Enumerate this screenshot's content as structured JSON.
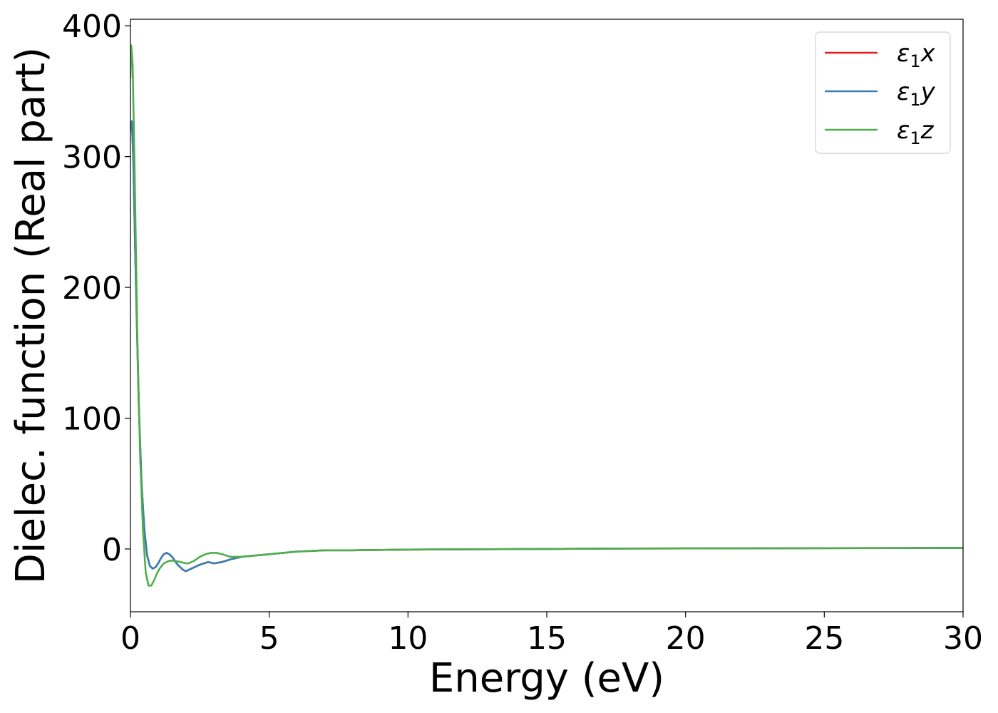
{
  "chart_data": {
    "type": "line",
    "title": "",
    "xlabel": "Energy (eV)",
    "ylabel": "Dielec. function (Real part)",
    "xlim": [
      0,
      30
    ],
    "ylim": [
      -48,
      405
    ],
    "xticks": [
      0,
      5,
      10,
      15,
      20,
      25,
      30
    ],
    "yticks": [
      0,
      100,
      200,
      300,
      400
    ],
    "grid": false,
    "legend_position": "top-right",
    "series": [
      {
        "name": "ε₁x",
        "label_base": "ε",
        "label_sub": "1",
        "label_suffix": "x",
        "color": "#e41a1c",
        "x": [
          0.0,
          0.05,
          0.1,
          0.2,
          0.3,
          0.4,
          0.5,
          0.6,
          0.7,
          0.8,
          0.9,
          1.0,
          1.1,
          1.2,
          1.3,
          1.4,
          1.5,
          1.7,
          1.9,
          2.0,
          2.2,
          2.5,
          2.8,
          3.0,
          3.3,
          3.6,
          4.0,
          4.5,
          5.0,
          6.0,
          7.0,
          8.0,
          10.0,
          12.0,
          15.0,
          17.0,
          20.0,
          25.0,
          30.0
        ],
        "y": [
          320,
          327,
          300,
          200,
          110,
          50,
          15,
          -5,
          -13,
          -15,
          -14,
          -11,
          -7,
          -4,
          -3,
          -4,
          -6,
          -12,
          -16,
          -17,
          -15,
          -12,
          -10,
          -11,
          -10,
          -8,
          -6,
          -5,
          -4,
          -2,
          -1,
          -1,
          -0.5,
          -0.3,
          0,
          0.3,
          0.4,
          0.6,
          0.8
        ]
      },
      {
        "name": "ε₁y",
        "label_base": "ε",
        "label_sub": "1",
        "label_suffix": "y",
        "color": "#377eb8",
        "x": [
          0.0,
          0.05,
          0.1,
          0.2,
          0.3,
          0.4,
          0.5,
          0.6,
          0.7,
          0.8,
          0.9,
          1.0,
          1.1,
          1.2,
          1.3,
          1.4,
          1.5,
          1.7,
          1.9,
          2.0,
          2.2,
          2.5,
          2.8,
          3.0,
          3.3,
          3.6,
          4.0,
          4.5,
          5.0,
          6.0,
          7.0,
          8.0,
          10.0,
          12.0,
          15.0,
          17.0,
          20.0,
          25.0,
          30.0
        ],
        "y": [
          320,
          327,
          300,
          200,
          110,
          50,
          15,
          -5,
          -13,
          -15,
          -14,
          -11,
          -7,
          -4,
          -3,
          -4,
          -6,
          -12,
          -16,
          -17,
          -15,
          -12,
          -10,
          -11,
          -10,
          -8,
          -6,
          -5,
          -4,
          -2,
          -1,
          -1,
          -0.5,
          -0.3,
          0,
          0.3,
          0.4,
          0.6,
          0.8
        ]
      },
      {
        "name": "ε₁z",
        "label_base": "ε",
        "label_sub": "1",
        "label_suffix": "z",
        "color": "#4daf4a",
        "x": [
          0.0,
          0.03,
          0.08,
          0.15,
          0.25,
          0.35,
          0.45,
          0.55,
          0.65,
          0.75,
          0.85,
          0.95,
          1.05,
          1.2,
          1.4,
          1.6,
          1.8,
          2.0,
          2.1,
          2.3,
          2.5,
          2.7,
          2.9,
          3.1,
          3.3,
          3.6,
          4.0,
          4.5,
          5.0,
          6.0,
          7.0,
          8.0,
          10.0,
          12.0,
          15.0,
          17.0,
          20.0,
          25.0,
          30.0
        ],
        "y": [
          360,
          385,
          370,
          290,
          160,
          70,
          15,
          -18,
          -28,
          -28,
          -24,
          -19,
          -15,
          -11,
          -9,
          -9,
          -10,
          -11,
          -11,
          -9,
          -6,
          -4,
          -3,
          -3,
          -4,
          -6,
          -6,
          -5,
          -4,
          -2,
          -1,
          -1,
          -0.5,
          -0.3,
          0,
          0.3,
          0.4,
          0.6,
          0.8
        ]
      }
    ]
  }
}
